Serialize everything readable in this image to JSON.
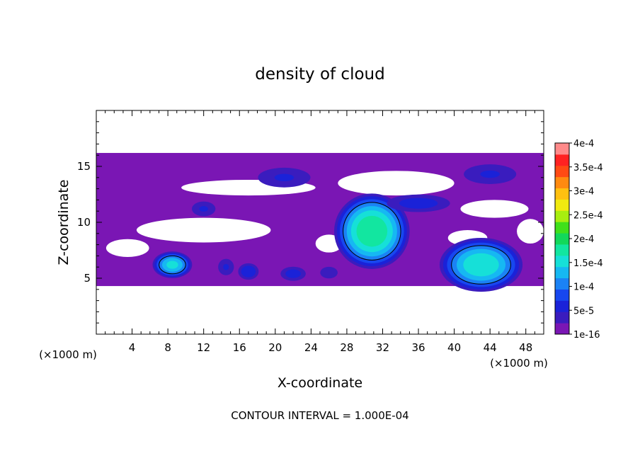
{
  "chart_data": {
    "type": "heatmap",
    "title": "density of cloud",
    "xlabel": "X-coordinate",
    "ylabel": "Z-coordinate",
    "x_unit": "(×1000 m)",
    "y_unit": "(×1000 m)",
    "footer": "CONTOUR INTERVAL = 1.000E-04",
    "xlim": [
      0,
      50
    ],
    "ylim": [
      0,
      20
    ],
    "x_ticks": [
      4,
      8,
      12,
      16,
      20,
      24,
      28,
      32,
      36,
      40,
      44,
      48
    ],
    "y_ticks": [
      5,
      10,
      15
    ],
    "contour_interval": 0.0001,
    "colorbar": {
      "tick_labels": [
        "1e-16",
        "5e-5",
        "1e-4",
        "1.5e-4",
        "2e-4",
        "2.5e-4",
        "3e-4",
        "3.5e-4",
        "4e-4"
      ],
      "levels": [
        1e-16,
        2.5e-05,
        5e-05,
        7.5e-05,
        0.0001,
        0.000125,
        0.00015,
        0.000175,
        0.0002,
        0.000225,
        0.00025,
        0.000275,
        0.0003,
        0.000325,
        0.00035,
        0.000375,
        0.0004
      ],
      "colors": [
        "#7a16b4",
        "#3a1cbe",
        "#1a22d8",
        "#1747ef",
        "#1b82f5",
        "#16b8f2",
        "#16e0d8",
        "#12e6a0",
        "#12d85a",
        "#40e01a",
        "#a8ee10",
        "#f0ea10",
        "#ffc010",
        "#ff8a10",
        "#ff4a14",
        "#ff2222",
        "#ff8a8a"
      ]
    },
    "cloud_layer": {
      "x": [
        0,
        50
      ],
      "z": [
        4.3,
        16.2
      ]
    },
    "cells": [
      {
        "x": 8.5,
        "z": 6.2,
        "rx": 2.4,
        "rz": 1.3,
        "peak": 0.00015
      },
      {
        "x": 14.5,
        "z": 6.0,
        "rx": 1.2,
        "rz": 1.0,
        "peak": 5e-05
      },
      {
        "x": 17,
        "z": 5.6,
        "rx": 1.4,
        "rz": 0.9,
        "peak": 7e-05
      },
      {
        "x": 22,
        "z": 5.4,
        "rx": 1.8,
        "rz": 0.8,
        "peak": 6e-05
      },
      {
        "x": 26,
        "z": 5.5,
        "rx": 1.5,
        "rz": 0.8,
        "peak": 4e-05
      },
      {
        "x": 30.8,
        "z": 9.2,
        "rx": 4.5,
        "rz": 3.6,
        "peak": 0.00019
      },
      {
        "x": 43,
        "z": 6.2,
        "rx": 5.0,
        "rz": 2.6,
        "peak": 0.000165
      },
      {
        "x": 21,
        "z": 14.0,
        "rx": 4.0,
        "rz": 1.2,
        "peak": 5e-05
      },
      {
        "x": 44,
        "z": 14.3,
        "rx": 4.0,
        "rz": 1.2,
        "peak": 5e-05
      },
      {
        "x": 12,
        "z": 11.2,
        "rx": 1.8,
        "rz": 0.9,
        "peak": 5e-05
      },
      {
        "x": 36,
        "z": 11.7,
        "rx": 4.5,
        "rz": 1.0,
        "peak": 6e-05
      }
    ],
    "gaps": [
      {
        "x": 17,
        "z": 13.1,
        "rx": 7.5,
        "rz": 0.7
      },
      {
        "x": 12,
        "z": 9.3,
        "rx": 7.5,
        "rz": 1.1
      },
      {
        "x": 33.5,
        "z": 13.5,
        "rx": 6.5,
        "rz": 1.1
      },
      {
        "x": 44.5,
        "z": 11.2,
        "rx": 3.8,
        "rz": 0.8
      },
      {
        "x": 3.5,
        "z": 7.7,
        "rx": 2.4,
        "rz": 0.8
      },
      {
        "x": 41.5,
        "z": 8.6,
        "rx": 2.2,
        "rz": 0.7
      },
      {
        "x": 48.5,
        "z": 9.2,
        "rx": 1.5,
        "rz": 1.1
      },
      {
        "x": 26,
        "z": 8.1,
        "rx": 1.5,
        "rz": 0.8
      }
    ]
  }
}
